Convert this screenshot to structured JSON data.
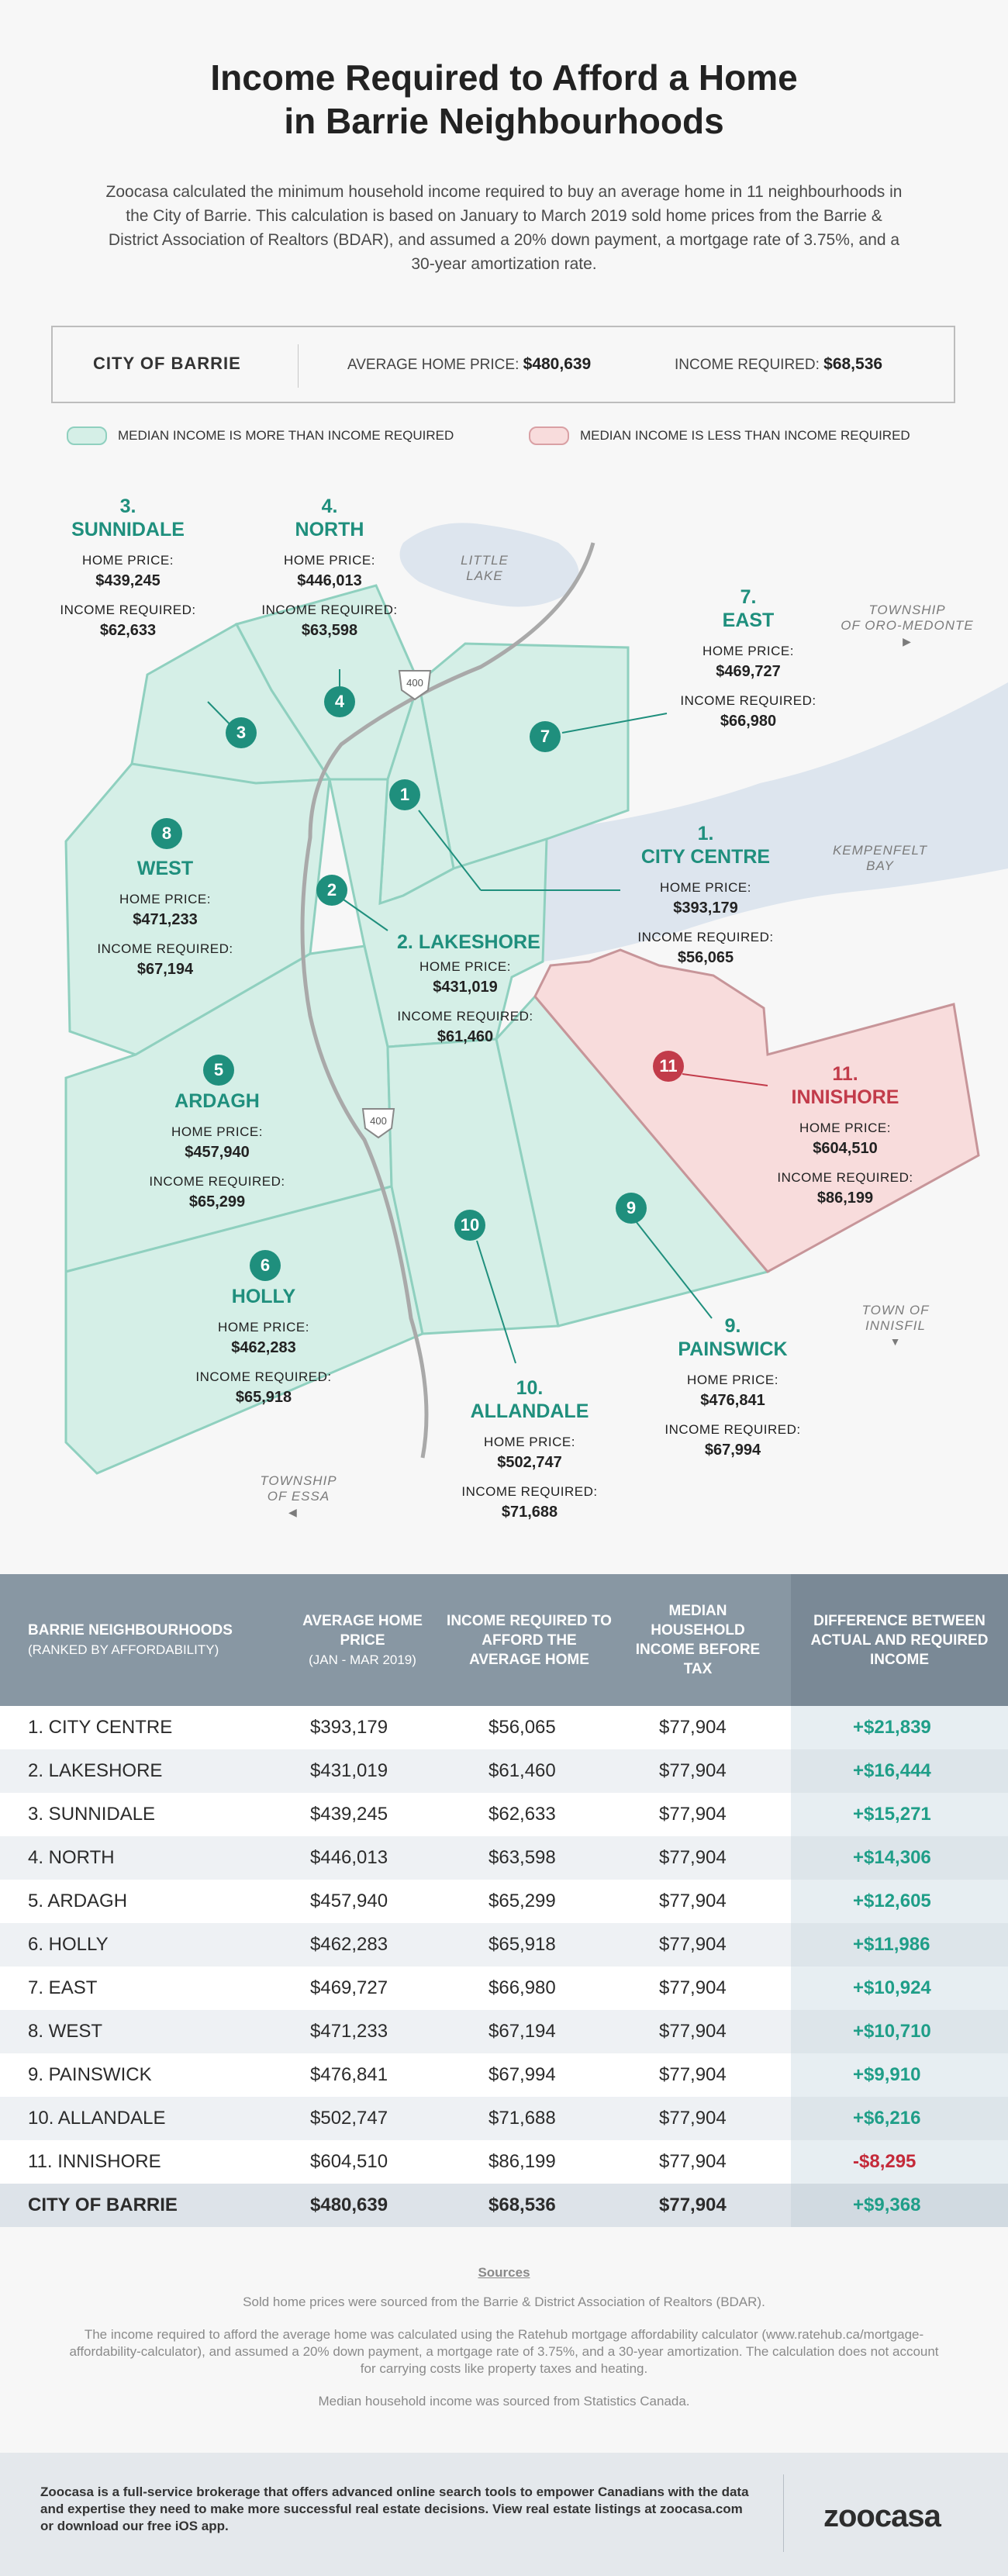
{
  "title_line1": "Income Required to Afford a Home",
  "title_line2": "in Barrie Neighbourhoods",
  "intro": "Zoocasa calculated the minimum household income required to buy an average home in 11 neighbourhoods in the City of Barrie. This calculation is based on January to March 2019 sold home prices from the Barrie & District Association of Realtors (BDAR), and assumed a 20% down payment, a mortgage rate of 3.75%, and a 30-year amortization rate.",
  "city": {
    "name": "CITY OF BARRIE",
    "price_label": "AVERAGE HOME PRICE:",
    "price": "$480,639",
    "income_label": "INCOME REQUIRED:",
    "income": "$68,536"
  },
  "legend": {
    "more": "MEDIAN INCOME IS MORE THAN INCOME REQUIRED",
    "less": "MEDIAN INCOME IS LESS THAN INCOME REQUIRED",
    "more_color": "#d5efe7",
    "less_color": "#f8dcdc"
  },
  "map": {
    "home_price_label": "HOME PRICE:",
    "income_label": "INCOME REQUIRED:",
    "highway": "400",
    "places": {
      "little_lake_1": "LITTLE",
      "little_lake_2": "LAKE",
      "kempenfelt_1": "KEMPENFELT",
      "kempenfelt_2": "BAY",
      "oro_1": "TOWNSHIP",
      "oro_2": "OF ORO-MEDONTE",
      "innisfil_1": "TOWN OF",
      "innisfil_2": "INNISFIL",
      "essa_1": "TOWNSHIP",
      "essa_2": "OF ESSA"
    },
    "neighbourhoods": [
      {
        "num": "1",
        "rank": "1.",
        "name": "CITY CENTRE",
        "price": "$393,179",
        "income": "$56,065"
      },
      {
        "num": "2",
        "rank": "2.",
        "name": "LAKESHORE",
        "price": "$431,019",
        "income": "$61,460"
      },
      {
        "num": "3",
        "rank": "3.",
        "name": "SUNNIDALE",
        "price": "$439,245",
        "income": "$62,633"
      },
      {
        "num": "4",
        "rank": "4.",
        "name": "NORTH",
        "price": "$446,013",
        "income": "$63,598"
      },
      {
        "num": "5",
        "rank": "5",
        "name": "ARDAGH",
        "price": "$457,940",
        "income": "$65,299"
      },
      {
        "num": "6",
        "rank": "6",
        "name": "HOLLY",
        "price": "$462,283",
        "income": "$65,918"
      },
      {
        "num": "7",
        "rank": "7.",
        "name": "EAST",
        "price": "$469,727",
        "income": "$66,980"
      },
      {
        "num": "8",
        "rank": "8",
        "name": "WEST",
        "price": "$471,233",
        "income": "$67,194"
      },
      {
        "num": "9",
        "rank": "9.",
        "name": "PAINSWICK",
        "price": "$476,841",
        "income": "$67,994"
      },
      {
        "num": "10",
        "rank": "10.",
        "name": "ALLANDALE",
        "price": "$502,747",
        "income": "$71,688"
      },
      {
        "num": "11",
        "rank": "11.",
        "name": "INNISHORE",
        "price": "$604,510",
        "income": "$86,199"
      }
    ]
  },
  "table": {
    "headers": {
      "h1": "BARRIE NEIGHBOURHOODS",
      "h1_sub": "(RANKED BY AFFORDABILITY)",
      "h2": "AVERAGE HOME PRICE",
      "h2_sub": "(JAN - MAR 2019)",
      "h3": "INCOME REQUIRED TO AFFORD THE AVERAGE HOME",
      "h4": "MEDIAN HOUSEHOLD INCOME BEFORE TAX",
      "h5": "DIFFERENCE BETWEEN ACTUAL AND REQUIRED INCOME"
    },
    "rows": [
      {
        "name": "1. CITY CENTRE",
        "price": "$393,179",
        "required": "$56,065",
        "median": "$77,904",
        "diff": "+$21,839"
      },
      {
        "name": "2. LAKESHORE",
        "price": "$431,019",
        "required": "$61,460",
        "median": "$77,904",
        "diff": "+$16,444"
      },
      {
        "name": "3. SUNNIDALE",
        "price": "$439,245",
        "required": "$62,633",
        "median": "$77,904",
        "diff": "+$15,271"
      },
      {
        "name": "4. NORTH",
        "price": "$446,013",
        "required": "$63,598",
        "median": "$77,904",
        "diff": "+$14,306"
      },
      {
        "name": "5. ARDAGH",
        "price": "$457,940",
        "required": "$65,299",
        "median": "$77,904",
        "diff": "+$12,605"
      },
      {
        "name": "6. HOLLY",
        "price": "$462,283",
        "required": "$65,918",
        "median": "$77,904",
        "diff": "+$11,986"
      },
      {
        "name": "7. EAST",
        "price": "$469,727",
        "required": "$66,980",
        "median": "$77,904",
        "diff": "+$10,924"
      },
      {
        "name": "8. WEST",
        "price": "$471,233",
        "required": "$67,194",
        "median": "$77,904",
        "diff": "+$10,710"
      },
      {
        "name": "9. PAINSWICK",
        "price": "$476,841",
        "required": "$67,994",
        "median": "$77,904",
        "diff": "+$9,910"
      },
      {
        "name": "10. ALLANDALE",
        "price": "$502,747",
        "required": "$71,688",
        "median": "$77,904",
        "diff": "+$6,216"
      },
      {
        "name": "11. INNISHORE",
        "price": "$604,510",
        "required": "$86,199",
        "median": "$77,904",
        "diff": "-$8,295"
      }
    ],
    "total": {
      "name": "CITY OF BARRIE",
      "price": "$480,639",
      "required": "$68,536",
      "median": "$77,904",
      "diff": "+$9,368"
    }
  },
  "sources": {
    "heading": "Sources",
    "s1": "Sold home prices were sourced from the Barrie & District Association of Realtors (BDAR).",
    "s2": "The income required to afford the average home was calculated using the Ratehub mortgage affordability calculator (www.ratehub.ca/mortgage-affordability-calculator), and assumed a 20% down payment, a mortgage rate of 3.75%, and a 30-year amortization. The calculation does not account for carrying costs like property taxes and heating.",
    "s3": "Median household income was sourced from Statistics Canada."
  },
  "footer": {
    "text": "Zoocasa is a full-service brokerage that offers advanced online search tools to empower Canadians with the data and expertise they need to make more successful real estate decisions. View real estate listings at zoocasa.com or download our free iOS app.",
    "logo": "zoocasa"
  }
}
